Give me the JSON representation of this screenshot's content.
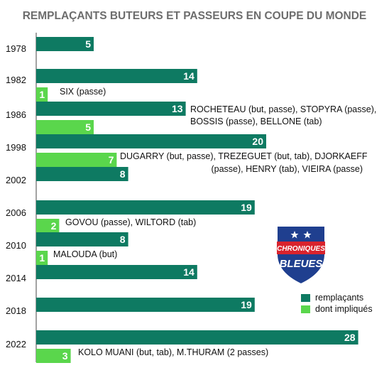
{
  "colors": {
    "remplacants": "#0e7a62",
    "impliques": "#5ad64c"
  },
  "logo": {
    "icon": "chroniques-bleues-shield",
    "line1": "CHRONIQUES",
    "line2": "BLEUES"
  },
  "chart_data": {
    "type": "bar",
    "orientation": "horizontal",
    "title": "REMPLAÇANTS BUTEURS ET PASSEURS EN COUPE DU MONDE",
    "categories": [
      "1978",
      "1982",
      "1986",
      "1998",
      "2002",
      "2006",
      "2010",
      "2014",
      "2018",
      "2022"
    ],
    "series": [
      {
        "name": "remplaçants",
        "values": [
          5,
          14,
          13,
          20,
          8,
          19,
          8,
          14,
          19,
          28
        ]
      },
      {
        "name": "dont impliqués",
        "values": [
          null,
          1,
          5,
          7,
          null,
          2,
          1,
          null,
          null,
          3
        ]
      }
    ],
    "annotations": [
      {
        "category": "1982",
        "lines": [
          "SIX (passe)"
        ]
      },
      {
        "category": "1986",
        "lines": [
          "ROCHETEAU (but, passe), STOPYRA (passe),",
          "BOSSIS (passe), BELLONE (tab)"
        ]
      },
      {
        "category": "1998",
        "lines": [
          "DUGARRY (but, passe), TREZEGUET (but, tab), DJORKAEFF",
          "(passe), HENRY (tab), VIEIRA (passe)"
        ]
      },
      {
        "category": "2006",
        "lines": [
          "GOVOU (passe), WILTORD (tab)"
        ]
      },
      {
        "category": "2010",
        "lines": [
          "MALOUDA (but)"
        ]
      },
      {
        "category": "2022",
        "lines": [
          "KOLO MUANI (but, tab), M.THURAM (2 passes)"
        ]
      }
    ],
    "legend": {
      "position": "right",
      "entries": [
        "remplaçants",
        "dont impliqués"
      ]
    }
  }
}
